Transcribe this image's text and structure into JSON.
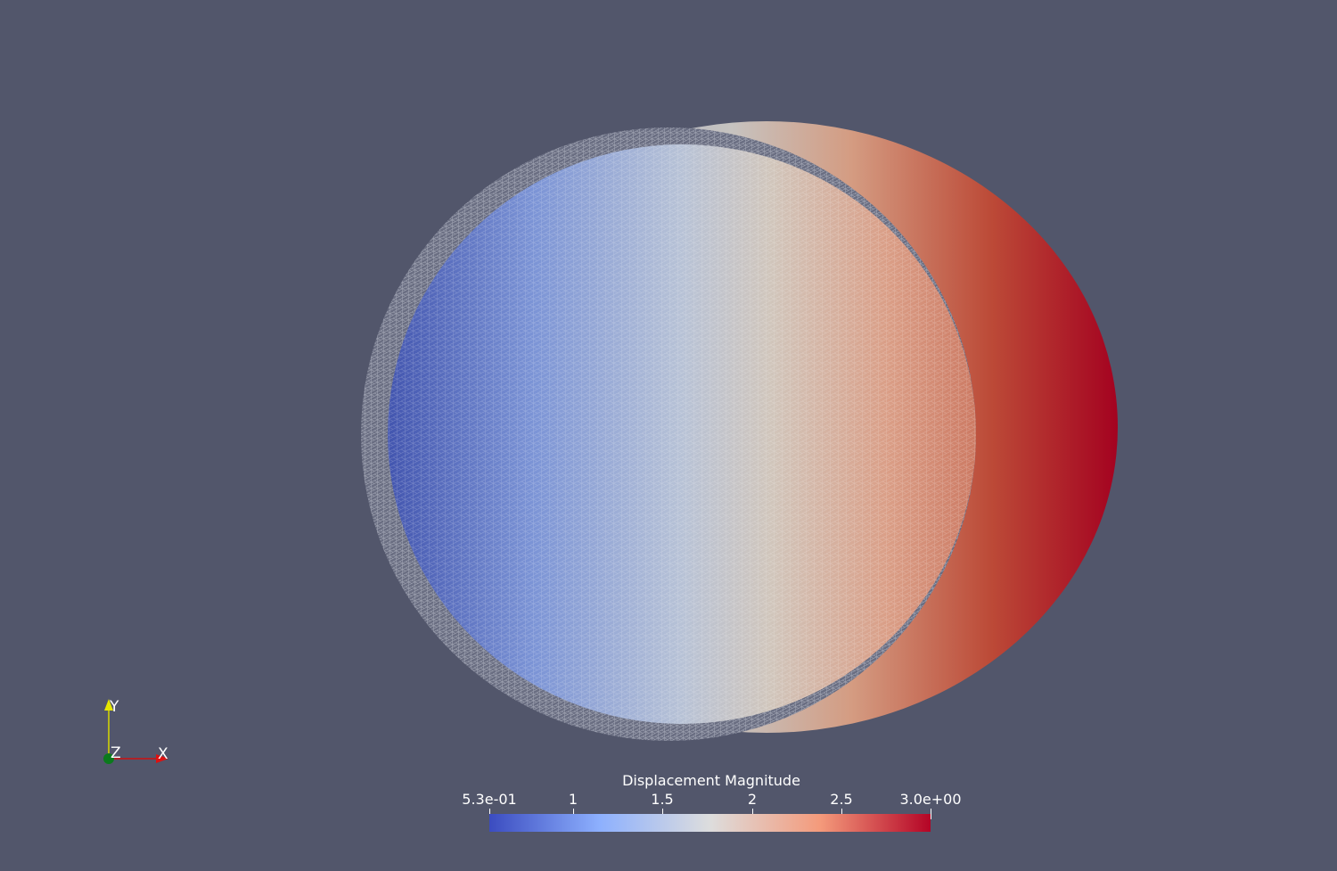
{
  "scene": {
    "background_color": "#52566b",
    "colormap": [
      "#3b4cc0",
      "#8db0fe",
      "#dddddd",
      "#f49a7b",
      "#b40426"
    ]
  },
  "orientation_axes": {
    "x_label": "X",
    "y_label": "Y",
    "z_label": "Z"
  },
  "legend": {
    "title": "Displacement Magnitude",
    "range": [
      0.53,
      3.0
    ],
    "ticks": [
      {
        "value": 0.53,
        "label": "5.3e-01"
      },
      {
        "value": 1.0,
        "label": "1"
      },
      {
        "value": 1.5,
        "label": "1.5"
      },
      {
        "value": 2.0,
        "label": "2"
      },
      {
        "value": 2.5,
        "label": "2.5"
      },
      {
        "value": 3.0,
        "label": "3.0e+00"
      }
    ]
  }
}
